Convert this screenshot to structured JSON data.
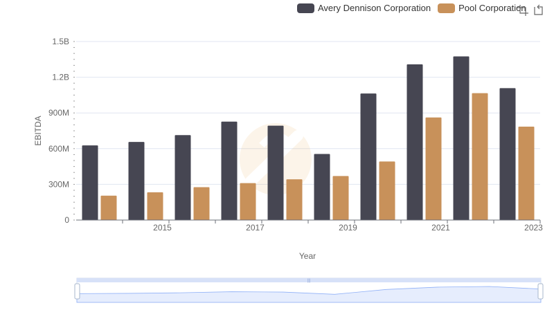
{
  "colors": {
    "series_0": "#464652",
    "series_1": "#c8915a",
    "grid": "#e0e6f1",
    "axis": "#6e7079",
    "zoom_fill": "#dbe6fc",
    "zoom_border": "#d2dbee"
  },
  "toolbox": {
    "zoom_icon": "zoom-select-icon",
    "restore_icon": "restore-icon"
  },
  "chart_data": {
    "type": "bar",
    "xlabel": "Year",
    "ylabel": "EBITDA",
    "categories": [
      "2014",
      "2015",
      "2016",
      "2017",
      "2018",
      "2019",
      "2020",
      "2021",
      "2022",
      "2023"
    ],
    "x_tick_labels": [
      "2015",
      "2017",
      "2019",
      "2021",
      "2023"
    ],
    "y_tick_labels": [
      "0",
      "300M",
      "600M",
      "900M",
      "1.2B",
      "1.5B"
    ],
    "ylim": [
      0,
      1500000000
    ],
    "legend_position": "top-right",
    "grid": true,
    "series": [
      {
        "name": "Avery Dennison Corporation",
        "values": [
          627000000,
          656000000,
          714000000,
          827000000,
          793000000,
          555000000,
          1063000000,
          1308000000,
          1375000000,
          1108000000
        ]
      },
      {
        "name": "Pool Corporation",
        "values": [
          205000000,
          233000000,
          276000000,
          310000000,
          342000000,
          370000000,
          492000000,
          862000000,
          1066000000,
          785000000
        ]
      }
    ],
    "data_zoom": {
      "start": 0,
      "end": 100
    }
  }
}
